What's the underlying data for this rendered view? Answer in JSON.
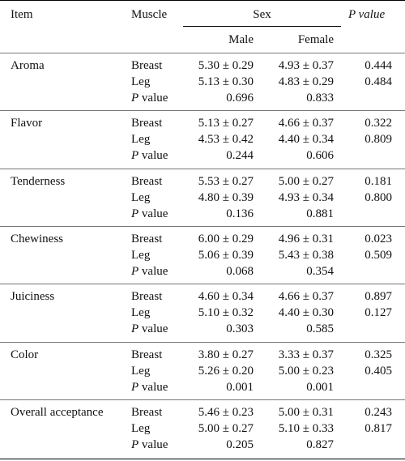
{
  "header": {
    "item": "Item",
    "muscle": "Muscle",
    "sex": "Sex",
    "p_value": "P value",
    "male": "Male",
    "female": "Female"
  },
  "groups": [
    {
      "item": "Aroma",
      "rows": [
        {
          "muscle": "Breast",
          "male": "5.30 ± 0.29",
          "female": "4.93 ± 0.37",
          "p": "0.444"
        },
        {
          "muscle": "Leg",
          "male": "5.13 ± 0.30",
          "female": "4.83 ± 0.29",
          "p": "0.484"
        },
        {
          "muscle": "P value",
          "male": "0.696",
          "female": "0.833",
          "p": ""
        }
      ]
    },
    {
      "item": "Flavor",
      "rows": [
        {
          "muscle": "Breast",
          "male": "5.13 ± 0.27",
          "female": "4.66 ± 0.37",
          "p": "0.322"
        },
        {
          "muscle": "Leg",
          "male": "4.53 ± 0.42",
          "female": "4.40 ± 0.34",
          "p": "0.809"
        },
        {
          "muscle": "P value",
          "male": "0.244",
          "female": "0.606",
          "p": ""
        }
      ]
    },
    {
      "item": "Tenderness",
      "rows": [
        {
          "muscle": "Breast",
          "male": "5.53 ± 0.27",
          "female": "5.00 ± 0.27",
          "p": "0.181"
        },
        {
          "muscle": "Leg",
          "male": "4.80 ± 0.39",
          "female": "4.93 ± 0.34",
          "p": "0.800"
        },
        {
          "muscle": "P value",
          "male": "0.136",
          "female": "0.881",
          "p": ""
        }
      ]
    },
    {
      "item": "Chewiness",
      "rows": [
        {
          "muscle": "Breast",
          "male": "6.00 ± 0.29",
          "female": "4.96 ± 0.31",
          "p": "0.023"
        },
        {
          "muscle": "Leg",
          "male": "5.06 ± 0.39",
          "female": "5.43 ± 0.38",
          "p": "0.509"
        },
        {
          "muscle": "P value",
          "male": "0.068",
          "female": "0.354",
          "p": ""
        }
      ]
    },
    {
      "item": "Juiciness",
      "rows": [
        {
          "muscle": "Breast",
          "male": "4.60 ± 0.34",
          "female": "4.66 ± 0.37",
          "p": "0.897"
        },
        {
          "muscle": "Leg",
          "male": "5.10 ± 0.32",
          "female": "4.40 ± 0.30",
          "p": "0.127"
        },
        {
          "muscle": "P value",
          "male": "0.303",
          "female": "0.585",
          "p": ""
        }
      ]
    },
    {
      "item": "Color",
      "rows": [
        {
          "muscle": "Breast",
          "male": "3.80 ± 0.27",
          "female": "3.33 ± 0.37",
          "p": "0.325"
        },
        {
          "muscle": "Leg",
          "male": "5.26 ± 0.20",
          "female": "5.00 ± 0.23",
          "p": "0.405"
        },
        {
          "muscle": "P value",
          "male": "0.001",
          "female": "0.001",
          "p": ""
        }
      ]
    },
    {
      "item": "Overall acceptance",
      "rows": [
        {
          "muscle": "Breast",
          "male": "5.46 ± 0.23",
          "female": "5.00 ± 0.31",
          "p": "0.243"
        },
        {
          "muscle": "Leg",
          "male": "5.00 ± 0.27",
          "female": "5.10 ± 0.33",
          "p": "0.817"
        },
        {
          "muscle": "P value",
          "male": "0.205",
          "female": "0.827",
          "p": ""
        }
      ]
    }
  ]
}
